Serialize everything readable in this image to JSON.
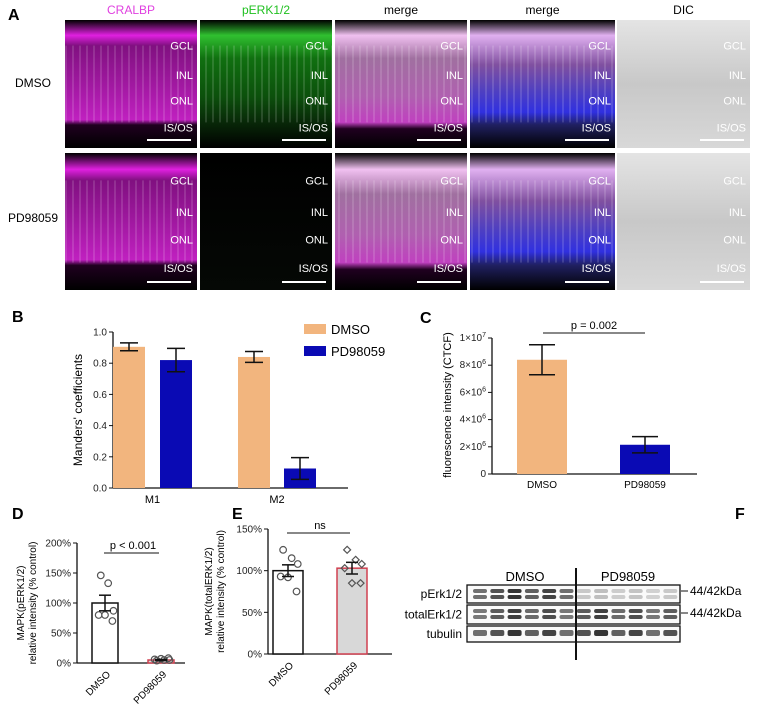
{
  "panel_labels": [
    "A",
    "B",
    "C",
    "D",
    "E",
    "F"
  ],
  "panel_a": {
    "columns": [
      {
        "label": "CRALBP",
        "color": "#e040e0",
        "kind": "cralbp"
      },
      {
        "label": "pERK1/2",
        "color": "#20c020",
        "kind": "perk"
      },
      {
        "label": "merge",
        "color": "#000000",
        "kind": "merge1"
      },
      {
        "label": "merge",
        "color": "#000000",
        "kind": "merge2"
      },
      {
        "label": "DIC",
        "color": "#000000",
        "kind": "dic"
      }
    ],
    "rows": [
      "DMSO",
      "PD98059"
    ],
    "layers": [
      "GCL",
      "INL",
      "ONL",
      "IS/OS"
    ]
  },
  "chart_data": [
    {
      "panel": "B",
      "type": "bar",
      "categories": [
        "M1",
        "M2"
      ],
      "ylabel": "Manders' coefficients",
      "xlabel": "",
      "ylim": [
        0,
        1.0
      ],
      "yticks": [
        "0.0",
        "0.2",
        "0.4",
        "0.6",
        "0.8",
        "1.0"
      ],
      "legend_position": "top-right",
      "series": [
        {
          "name": "DMSO",
          "color": "#f2b57e",
          "values": [
            0.905,
            0.84
          ],
          "errors": [
            0.025,
            0.035
          ]
        },
        {
          "name": "PD98059",
          "color": "#0a0ab4",
          "values": [
            0.82,
            0.125
          ],
          "errors": [
            0.075,
            0.07
          ]
        }
      ]
    },
    {
      "panel": "C",
      "type": "bar",
      "categories": [
        "DMSO",
        "PD98059"
      ],
      "ylabel": "fluorescence intensity (CTCF)",
      "ylim": [
        0,
        10000000
      ],
      "yticks": [
        [
          "0",
          ""
        ],
        [
          "2×10",
          "6"
        ],
        [
          "4×10",
          "6"
        ],
        [
          "6×10",
          "6"
        ],
        [
          "8×10",
          "6"
        ],
        [
          "1×10",
          "7"
        ]
      ],
      "values": [
        8400000,
        2150000
      ],
      "errors": [
        1100000,
        600000
      ],
      "colors": [
        "#f2b57e",
        "#0a0ab4"
      ],
      "annotation": "p = 0.002"
    },
    {
      "panel": "D",
      "type": "bar",
      "categories": [
        "DMSO",
        "PD98059"
      ],
      "ylabel": [
        "MAPK(pERK1/2)",
        "relative intensity (% control)"
      ],
      "ylim": [
        0,
        200
      ],
      "yticks": [
        "0%",
        "50%",
        "100%",
        "150%",
        "200%"
      ],
      "values": [
        100,
        5
      ],
      "errors": [
        13,
        1
      ],
      "points": [
        [
          146,
          133,
          87,
          80,
          80,
          70
        ],
        [
          4,
          5,
          5,
          6,
          7,
          8
        ]
      ],
      "edge_colors": [
        "#111111",
        "#d04050"
      ],
      "fill_colors": [
        "#ffffff",
        "#d8d8d8"
      ],
      "marker": "circle",
      "annotation": "p < 0.001"
    },
    {
      "panel": "E",
      "type": "bar",
      "categories": [
        "DMSO",
        "PD98059"
      ],
      "ylabel": [
        "MAPK(totalERK1/2)",
        "relative intensity (% control)"
      ],
      "ylim": [
        0,
        150
      ],
      "yticks": [
        "0%",
        "50%",
        "100%",
        "150%"
      ],
      "values": [
        100,
        103
      ],
      "errors": [
        7,
        7
      ],
      "points": [
        [
          125,
          115,
          108,
          93,
          92,
          75
        ],
        [
          125,
          113,
          108,
          103,
          85,
          85
        ]
      ],
      "edge_colors": [
        "#111111",
        "#d04050"
      ],
      "fill_colors": [
        "#ffffff",
        "#d8d8d8"
      ],
      "marker": [
        "circle",
        "diamond"
      ],
      "annotation": "ns"
    }
  ],
  "panel_f": {
    "groups": [
      "DMSO",
      "PD98059"
    ],
    "rows": [
      "pErk1/2",
      "totalErk1/2",
      "tubulin"
    ],
    "size_labels": [
      "44/42kDa",
      "44/42kDa"
    ]
  }
}
